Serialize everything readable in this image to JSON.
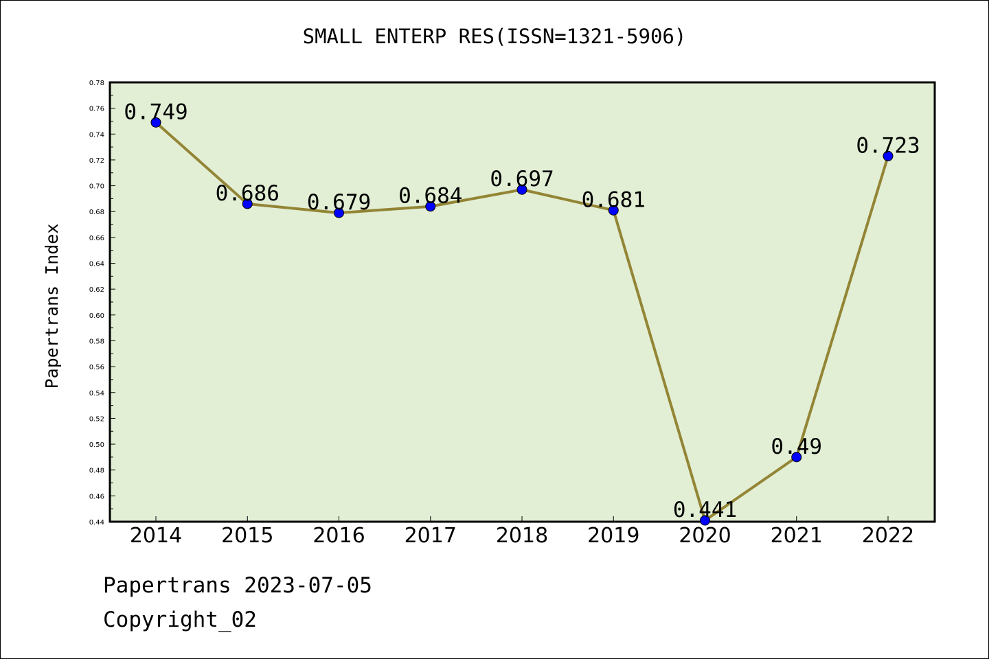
{
  "chart_data": {
    "type": "line",
    "title": "SMALL ENTERP RES(ISSN=1321-5906)",
    "xlabel": "",
    "ylabel": "Papertrans Index",
    "categories": [
      "2014",
      "2015",
      "2016",
      "2017",
      "2018",
      "2019",
      "2020",
      "2021",
      "2022"
    ],
    "values": [
      0.749,
      0.686,
      0.679,
      0.684,
      0.697,
      0.681,
      0.441,
      0.49,
      0.723
    ],
    "data_labels": [
      "0.749",
      "0.686",
      "0.679",
      "0.684",
      "0.697",
      "0.681",
      "0.441",
      "0.49",
      "0.723"
    ],
    "ylim": [
      0.44,
      0.78
    ],
    "yticks": [
      "0.44",
      "0.46",
      "0.48",
      "0.50",
      "0.52",
      "0.54",
      "0.56",
      "0.58",
      "0.60",
      "0.62",
      "0.64",
      "0.66",
      "0.68",
      "0.70",
      "0.72",
      "0.74",
      "0.76",
      "0.78"
    ],
    "grid": false,
    "colors": {
      "plot_background": "#e2efd5",
      "line": "#938535",
      "marker": "#0000ff"
    }
  },
  "footer": {
    "line1": "Papertrans 2023-07-05",
    "line2": "Copyright_02"
  }
}
